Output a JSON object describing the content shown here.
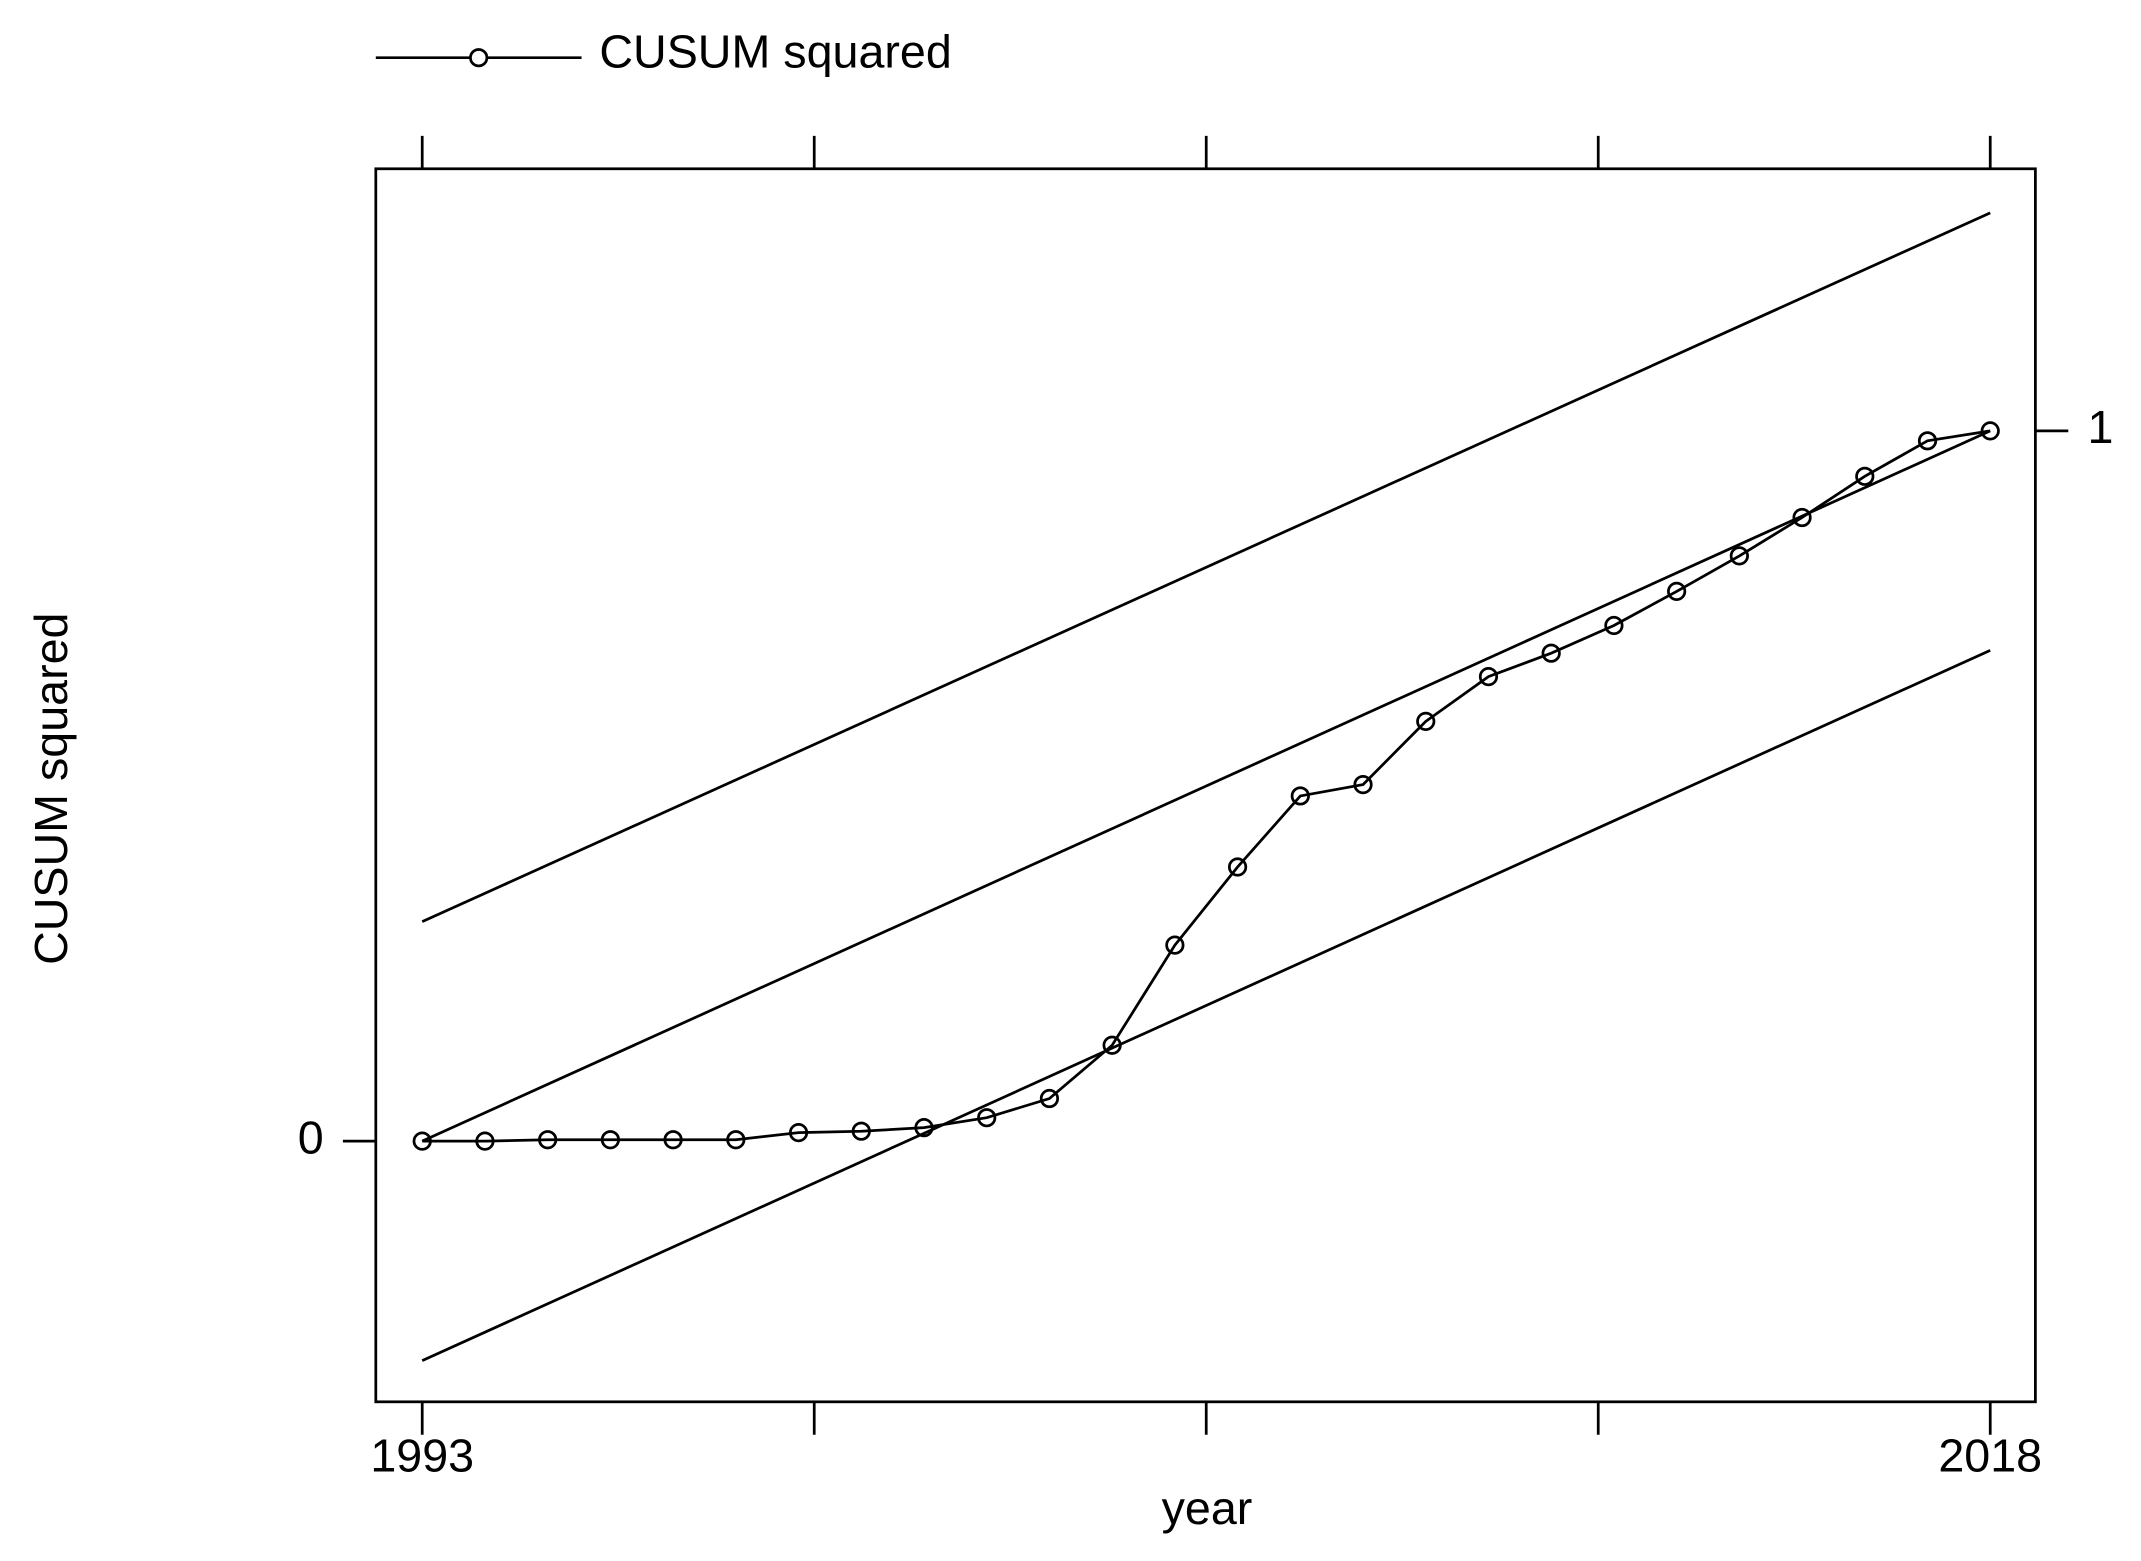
{
  "chart_data": {
    "type": "line",
    "x_label": "year",
    "y_label": "CUSUM squared",
    "x": [
      1993,
      1994,
      1995,
      1996,
      1997,
      1998,
      1999,
      2000,
      2001,
      2002,
      2003,
      2004,
      2005,
      2006,
      2007,
      2008,
      2009,
      2010,
      2011,
      2012,
      2013,
      2014,
      2015,
      2016,
      2017,
      2018
    ],
    "series": [
      {
        "name": "CUSUM squared",
        "color": "#000000",
        "values": [
          0,
          0,
          0.002,
          0.002,
          0.002,
          0.002,
          0.012,
          0.014,
          0.019,
          0.033,
          0.06,
          0.135,
          0.276,
          0.386,
          0.486,
          0.502,
          0.591,
          0.654,
          0.687,
          0.726,
          0.774,
          0.824,
          0.878,
          0.936,
          0.986,
          1
        ]
      }
    ],
    "reference_lines": [
      {
        "x": [
          1993,
          2018
        ],
        "values": [
          0.309,
          1.307
        ]
      },
      {
        "x": [
          1993,
          2018
        ],
        "values": [
          0,
          1
        ]
      },
      {
        "x": [
          1993,
          2018
        ],
        "values": [
          -0.309,
          0.691
        ]
      }
    ],
    "xlim": [
      1992.26,
      2018.72
    ],
    "ylim": [
      -0.367,
      1.369
    ],
    "xticks": [
      1993,
      2018
    ],
    "xticks_unlabeled": [
      1999.25,
      2005.5,
      2011.75
    ],
    "yticks": [
      0,
      1
    ],
    "ytick_sides": [
      "left",
      "right"
    ],
    "grid": false,
    "legend": "top",
    "markers": "circle"
  }
}
